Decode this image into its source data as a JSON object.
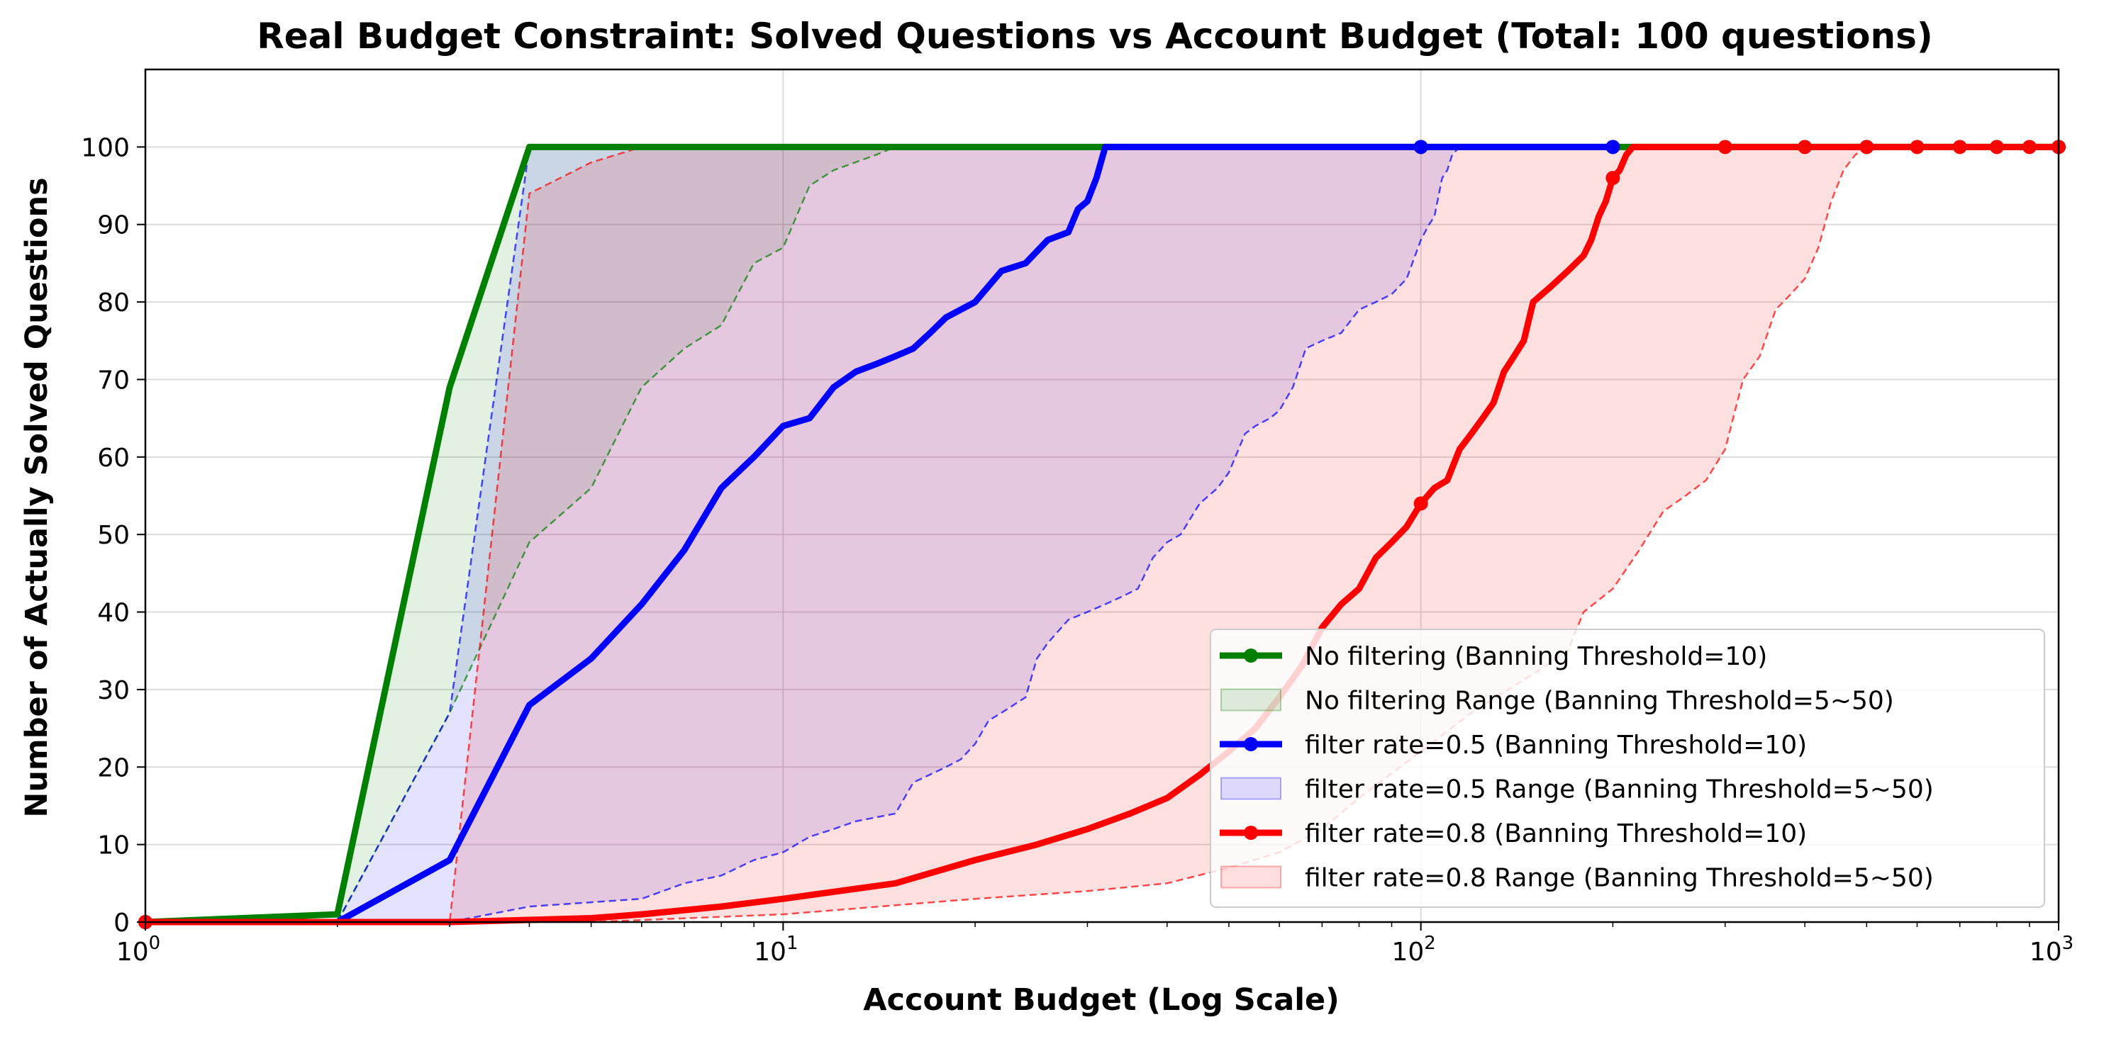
{
  "chart_data": {
    "type": "line",
    "title": "Real Budget Constraint: Solved Questions vs Account Budget (Total: 100 questions)",
    "xlabel": "Account Budget (Log Scale)",
    "ylabel": "Number of Actually Solved Questions",
    "xscale": "log",
    "xlim": [
      1,
      1000
    ],
    "ylim": [
      0,
      110
    ],
    "xticks": [
      1,
      10,
      100,
      1000
    ],
    "xtick_labels": [
      {
        "base": "10",
        "exp": "0"
      },
      {
        "base": "10",
        "exp": "1"
      },
      {
        "base": "10",
        "exp": "2"
      },
      {
        "base": "10",
        "exp": "3"
      }
    ],
    "yticks": [
      0,
      10,
      20,
      30,
      40,
      50,
      60,
      70,
      80,
      90,
      100
    ],
    "grid": true,
    "legend_position": "lower-right",
    "series": [
      {
        "name": "No filtering (Banning Threshold=10)",
        "color": "#008000",
        "x": [
          1,
          2,
          3,
          4,
          5,
          6,
          7,
          8,
          9,
          10,
          20,
          50,
          100,
          200,
          500,
          1000
        ],
        "y": [
          0,
          1,
          69,
          100,
          100,
          100,
          100,
          100,
          100,
          100,
          100,
          100,
          100,
          100,
          100,
          100
        ],
        "markers_at": [
          1,
          100,
          200,
          500,
          1000
        ]
      },
      {
        "name": "filter rate=0.5 (Banning Threshold=10)",
        "color": "#0000ff",
        "x": [
          1,
          2,
          3,
          4,
          5,
          6,
          7,
          8,
          9,
          10,
          11,
          12,
          13,
          14,
          15,
          16,
          17,
          18,
          20,
          22,
          24,
          26,
          28,
          29,
          30,
          31,
          32,
          33,
          40,
          60,
          100,
          150,
          200
        ],
        "y": [
          0,
          0,
          8,
          28,
          34,
          41,
          48,
          56,
          60,
          64,
          65,
          69,
          71,
          72,
          73,
          74,
          76,
          78,
          80,
          84,
          85,
          88,
          89,
          92,
          93,
          96,
          100,
          100,
          100,
          100,
          100,
          100,
          100
        ],
        "markers_at": [
          1,
          100,
          200
        ]
      },
      {
        "name": "filter rate=0.8 (Banning Threshold=10)",
        "color": "#ff0000",
        "x": [
          1,
          3,
          5,
          6,
          8,
          10,
          15,
          20,
          25,
          30,
          35,
          40,
          45,
          50,
          55,
          60,
          65,
          70,
          75,
          80,
          85,
          90,
          95,
          100,
          105,
          110,
          115,
          120,
          125,
          130,
          135,
          140,
          145,
          150,
          160,
          170,
          180,
          185,
          190,
          195,
          200,
          205,
          210,
          215,
          300,
          400,
          500,
          600,
          700,
          800,
          900,
          1000
        ],
        "y": [
          0,
          0,
          0.5,
          1,
          2,
          3,
          5,
          8,
          10,
          12,
          14,
          16,
          19,
          22,
          25,
          29,
          33,
          38,
          41,
          43,
          47,
          49,
          51,
          54,
          56,
          57,
          61,
          63,
          65,
          67,
          71,
          73,
          75,
          80,
          82,
          84,
          86,
          88,
          91,
          93,
          96,
          97,
          99,
          100,
          100,
          100,
          100,
          100,
          100,
          100,
          100,
          100
        ],
        "markers_at": [
          1,
          100,
          200,
          300,
          400,
          500,
          600,
          700,
          800,
          900,
          1000
        ]
      }
    ],
    "ranges": [
      {
        "name": "No filtering Range (Banning Threshold=5~50)",
        "color": "#008000",
        "lower": {
          "x": [
            2,
            3,
            4,
            5,
            6,
            7,
            8,
            9,
            10,
            11,
            12,
            14,
            15
          ],
          "y": [
            0,
            27,
            49,
            56,
            69,
            74,
            77,
            85,
            87,
            95,
            97,
            99,
            100
          ]
        },
        "upper": {
          "x": [
            2,
            3,
            4
          ],
          "y": [
            0,
            69,
            100
          ]
        }
      },
      {
        "name": "filter rate=0.5 Range (Banning Threshold=5~50)",
        "color": "#0000ff",
        "lower": {
          "x": [
            1,
            3,
            4,
            6,
            7,
            8,
            9,
            10,
            11,
            12,
            13,
            15,
            16,
            18,
            19,
            20,
            21,
            22,
            24,
            25,
            26,
            28,
            30,
            32,
            34,
            36,
            38,
            40,
            42,
            45,
            48,
            50,
            53,
            55,
            58,
            60,
            63,
            66,
            70,
            75,
            80,
            85,
            90,
            95,
            100,
            103,
            105,
            108,
            110,
            112,
            115
          ],
          "y": [
            0,
            0,
            2,
            3,
            5,
            6,
            8,
            9,
            11,
            12,
            13,
            14,
            18,
            20,
            21,
            23,
            26,
            27,
            29,
            34,
            36,
            39,
            40,
            41,
            42,
            43,
            47,
            49,
            50,
            54,
            56,
            58,
            63,
            64,
            65,
            66,
            69,
            74,
            75,
            76,
            79,
            80,
            81,
            83,
            88,
            90,
            91,
            96,
            97,
            99,
            100
          ]
        },
        "upper": {
          "x": [
            1,
            2,
            3,
            4
          ],
          "y": [
            0,
            0,
            27,
            100
          ]
        }
      },
      {
        "name": "filter rate=0.8 Range (Banning Threshold=5~50)",
        "color": "#ff0000",
        "lower": {
          "x": [
            1,
            5,
            10,
            20,
            30,
            40,
            50,
            60,
            70,
            80,
            100,
            120,
            150,
            170,
            180,
            200,
            220,
            240,
            260,
            280,
            300,
            320,
            340,
            360,
            380,
            400,
            420,
            440,
            460,
            480,
            500
          ],
          "y": [
            0,
            0,
            1,
            3,
            4,
            5,
            7,
            9,
            12,
            16,
            22,
            27,
            32,
            35,
            40,
            43,
            48,
            53,
            55,
            57,
            61,
            70,
            73,
            79,
            81,
            83,
            87,
            93,
            97,
            99,
            100
          ]
        },
        "upper": {
          "x": [
            1,
            2,
            3,
            4,
            5,
            6
          ],
          "y": [
            0,
            0,
            0,
            94,
            98,
            100
          ]
        }
      }
    ]
  }
}
